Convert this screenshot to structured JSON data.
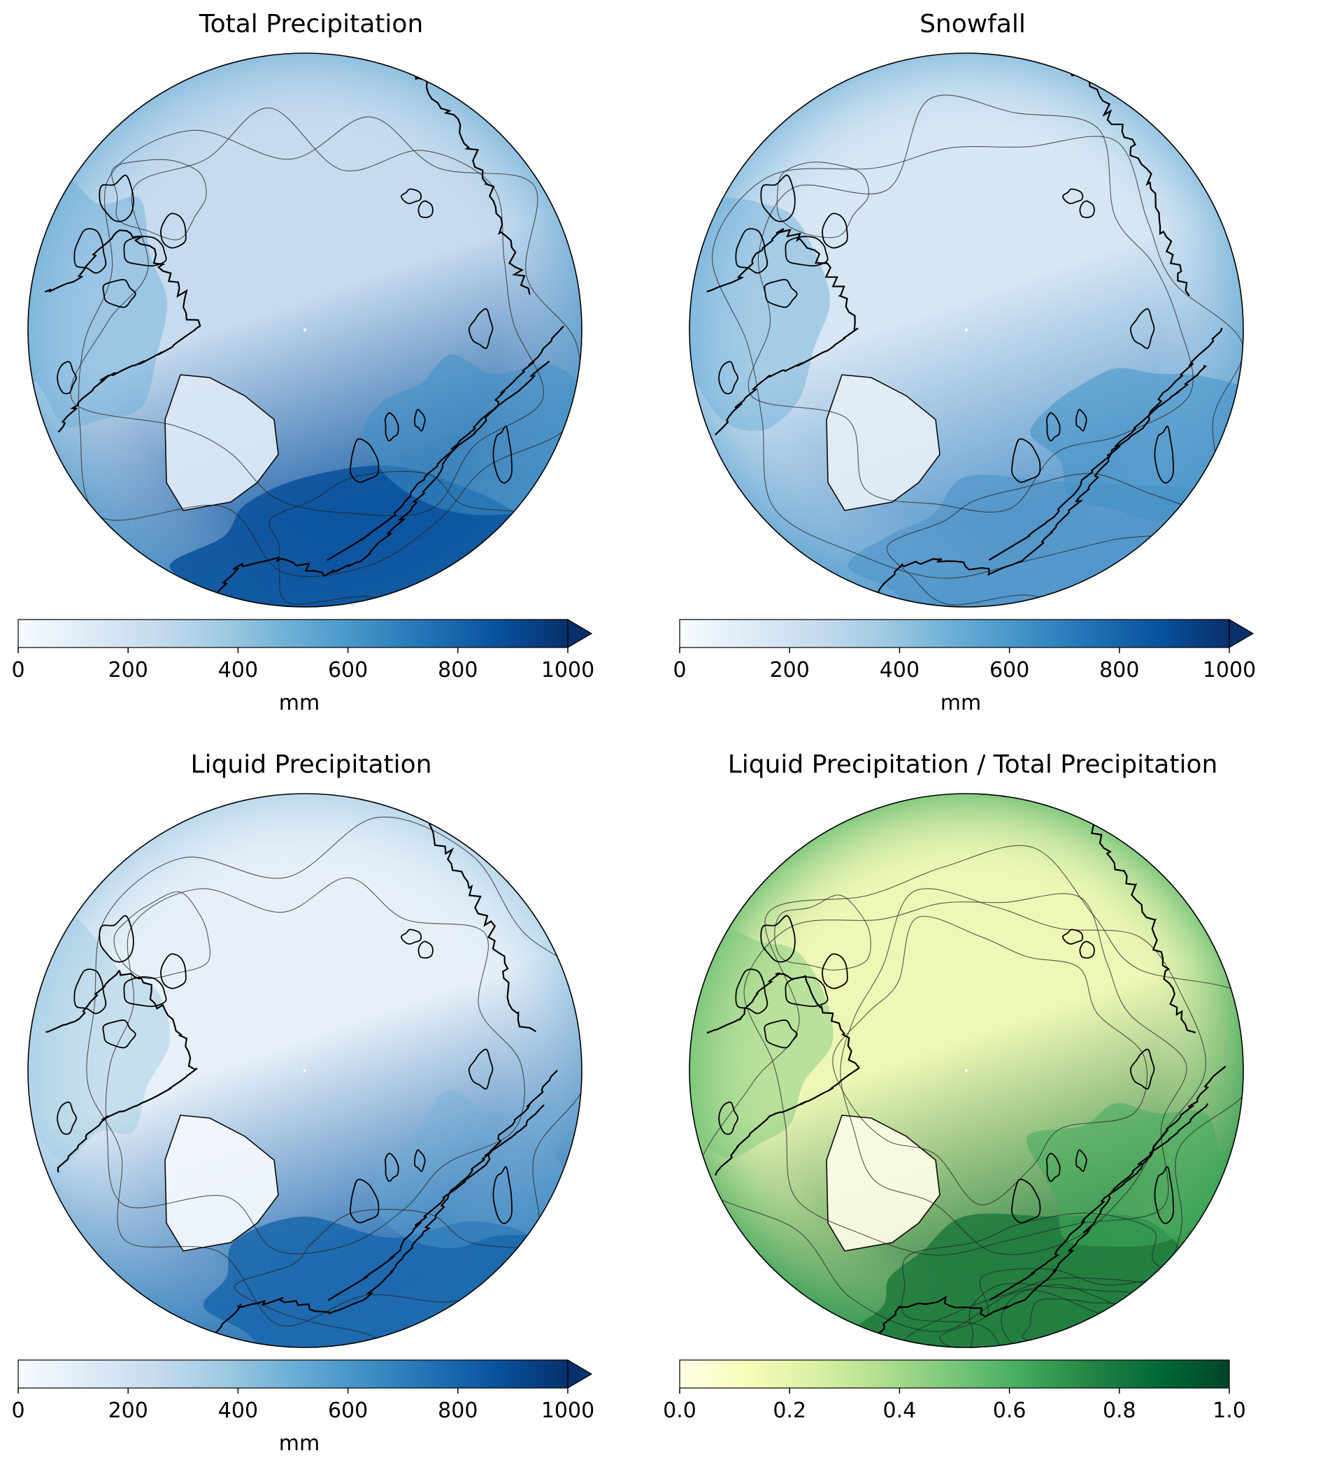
{
  "panels": [
    {
      "title": "Total Precipitation",
      "colormap": "Blues",
      "colorbar": {
        "ticks": [
          "0",
          "200",
          "400",
          "600",
          "800",
          "1000"
        ],
        "label": "mm",
        "extend": "max"
      },
      "colors": {
        "ocean": "#c6dbef",
        "south": "#08519c",
        "land_low": "#dbe9f6"
      }
    },
    {
      "title": "Snowfall",
      "colormap": "Blues",
      "colorbar": {
        "ticks": [
          "0",
          "200",
          "400",
          "600",
          "800",
          "1000"
        ],
        "label": "mm",
        "extend": "max"
      },
      "colors": {
        "ocean": "#d6e6f4",
        "south": "#4a8fc6",
        "land_low": "#e3eef8"
      }
    },
    {
      "title": "Liquid Precipitation",
      "colormap": "Blues",
      "colorbar": {
        "ticks": [
          "0",
          "200",
          "400",
          "600",
          "800",
          "1000"
        ],
        "label": "mm",
        "extend": "max"
      },
      "colors": {
        "ocean": "#e7f0f9",
        "south": "#1a66ad",
        "land_low": "#f3f8fc"
      }
    },
    {
      "title": "Liquid Precipitation / Total Precipitation",
      "colormap": "YlGn",
      "colorbar": {
        "ticks": [
          "0.0",
          "0.2",
          "0.4",
          "0.6",
          "0.8",
          "1.0"
        ],
        "label": "",
        "extend": "neither"
      },
      "colors": {
        "ocean": "#eef7b6",
        "south": "#1f7a3d",
        "land_low": "#fbfde3"
      }
    }
  ]
}
